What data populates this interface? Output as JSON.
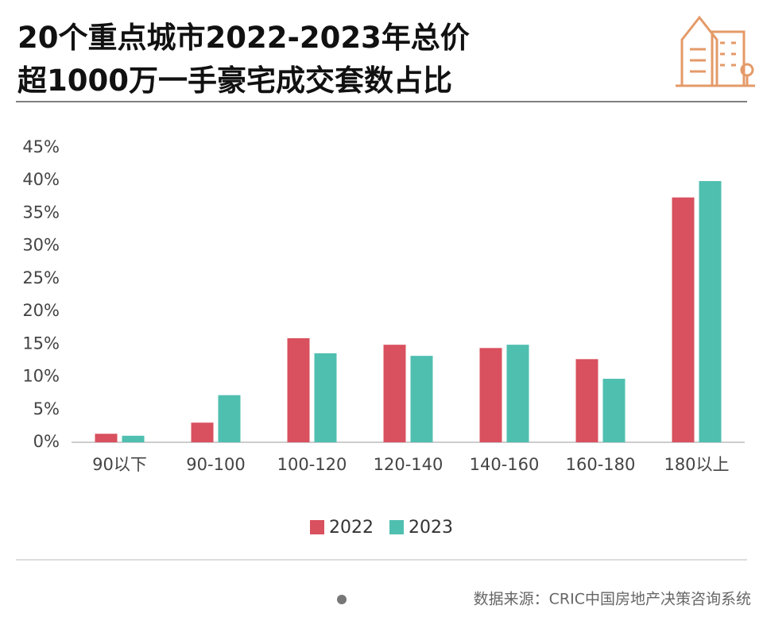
{
  "chart_data": {
    "type": "bar",
    "title": [
      "20个重点城市2022-2023年总价",
      "超1000万一手豪宅成交套数占比"
    ],
    "categories": [
      "90以下",
      "90-100",
      "100-120",
      "120-140",
      "140-160",
      "160-180",
      "180以上"
    ],
    "series": [
      {
        "name": "2022",
        "color": "#d9505e",
        "values": [
          1.3,
          3.0,
          15.9,
          14.9,
          14.4,
          12.7,
          37.4
        ]
      },
      {
        "name": "2023",
        "color": "#4fbfb0",
        "values": [
          1.0,
          7.2,
          13.6,
          13.2,
          14.9,
          9.7,
          39.9
        ]
      }
    ],
    "ylim": [
      0,
      45
    ],
    "yticks": [
      {
        "value": 0,
        "label": "0%"
      },
      {
        "value": 5,
        "label": "5%"
      },
      {
        "value": 10,
        "label": "10%"
      },
      {
        "value": 15,
        "label": "15%"
      },
      {
        "value": 20,
        "label": "20%"
      },
      {
        "value": 25,
        "label": "25%"
      },
      {
        "value": 30,
        "label": "30%"
      },
      {
        "value": 35,
        "label": "35%"
      },
      {
        "value": 40,
        "label": "40%"
      },
      {
        "value": 45,
        "label": "45%"
      }
    ],
    "grid": false,
    "legend": "bottom",
    "source": "数据来源：CRIC中国房地产决策咨询系统"
  }
}
